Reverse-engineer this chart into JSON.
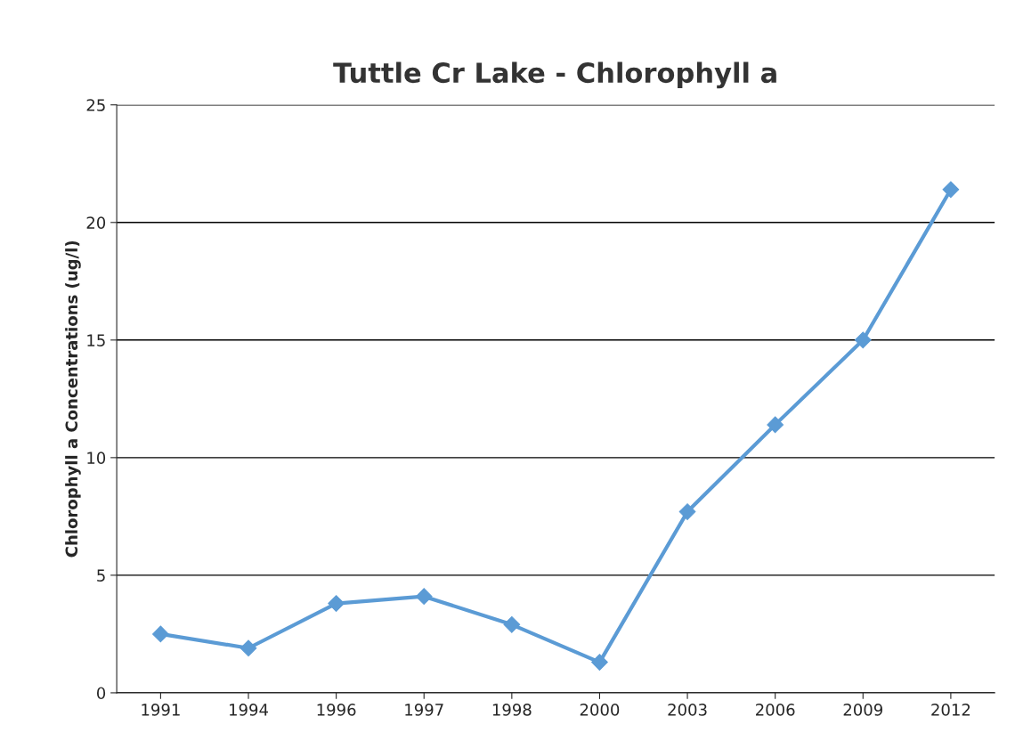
{
  "chart_data": {
    "type": "line",
    "title": "Tuttle Cr Lake - Chlorophyll a",
    "ylabel": "Chlorophyll a Concentrations (ug/l)",
    "categories": [
      "1991",
      "1994",
      "1996",
      "1997",
      "1998",
      "2000",
      "2003",
      "2006",
      "2009",
      "2012"
    ],
    "series": [
      {
        "color": "#5b9bd5",
        "values": [
          2.5,
          1.9,
          3.8,
          4.1,
          2.9,
          1.3,
          7.7,
          11.4,
          15.0,
          21.4
        ]
      }
    ],
    "ylim": [
      0,
      25
    ],
    "yticks": [
      0,
      5,
      10,
      15,
      20,
      25
    ],
    "grid": "y",
    "marker": "diamond",
    "line_style": "solid"
  }
}
